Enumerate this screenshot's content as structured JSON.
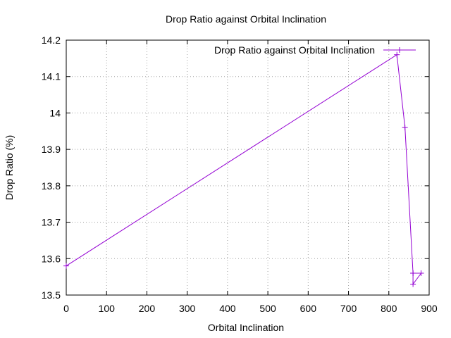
{
  "chart_data": {
    "type": "line",
    "title": "Drop Ratio against Orbital Inclination",
    "xlabel": "Orbital Inclination",
    "ylabel": "Drop Ratio (%)",
    "xlim": [
      0,
      900
    ],
    "ylim": [
      13.5,
      14.2
    ],
    "xticks": [
      0,
      100,
      200,
      300,
      400,
      500,
      600,
      700,
      800,
      900
    ],
    "yticks": [
      13.5,
      13.6,
      13.7,
      13.8,
      13.9,
      14,
      14.1,
      14.2
    ],
    "xtick_labels": [
      "0",
      "100",
      "200",
      "300",
      "400",
      "500",
      "600",
      "700",
      "800",
      "900"
    ],
    "ytick_labels": [
      "13.5",
      "13.6",
      "13.7",
      "13.8",
      "13.9",
      "14",
      "14.1",
      "14.2"
    ],
    "grid": true,
    "legend_position": "top-right",
    "series": [
      {
        "name": "Drop Ratio against Orbital Inclination",
        "color": "#9400d3",
        "marker": "plus",
        "points": [
          {
            "x": 0,
            "y": 13.58
          },
          {
            "x": 820,
            "y": 14.16
          },
          {
            "x": 840,
            "y": 13.96
          },
          {
            "x": 860,
            "y": 13.56
          },
          {
            "x": 860,
            "y": 13.53
          },
          {
            "x": 880,
            "y": 13.56
          },
          {
            "x": 860,
            "y": 13.56
          }
        ]
      }
    ]
  }
}
